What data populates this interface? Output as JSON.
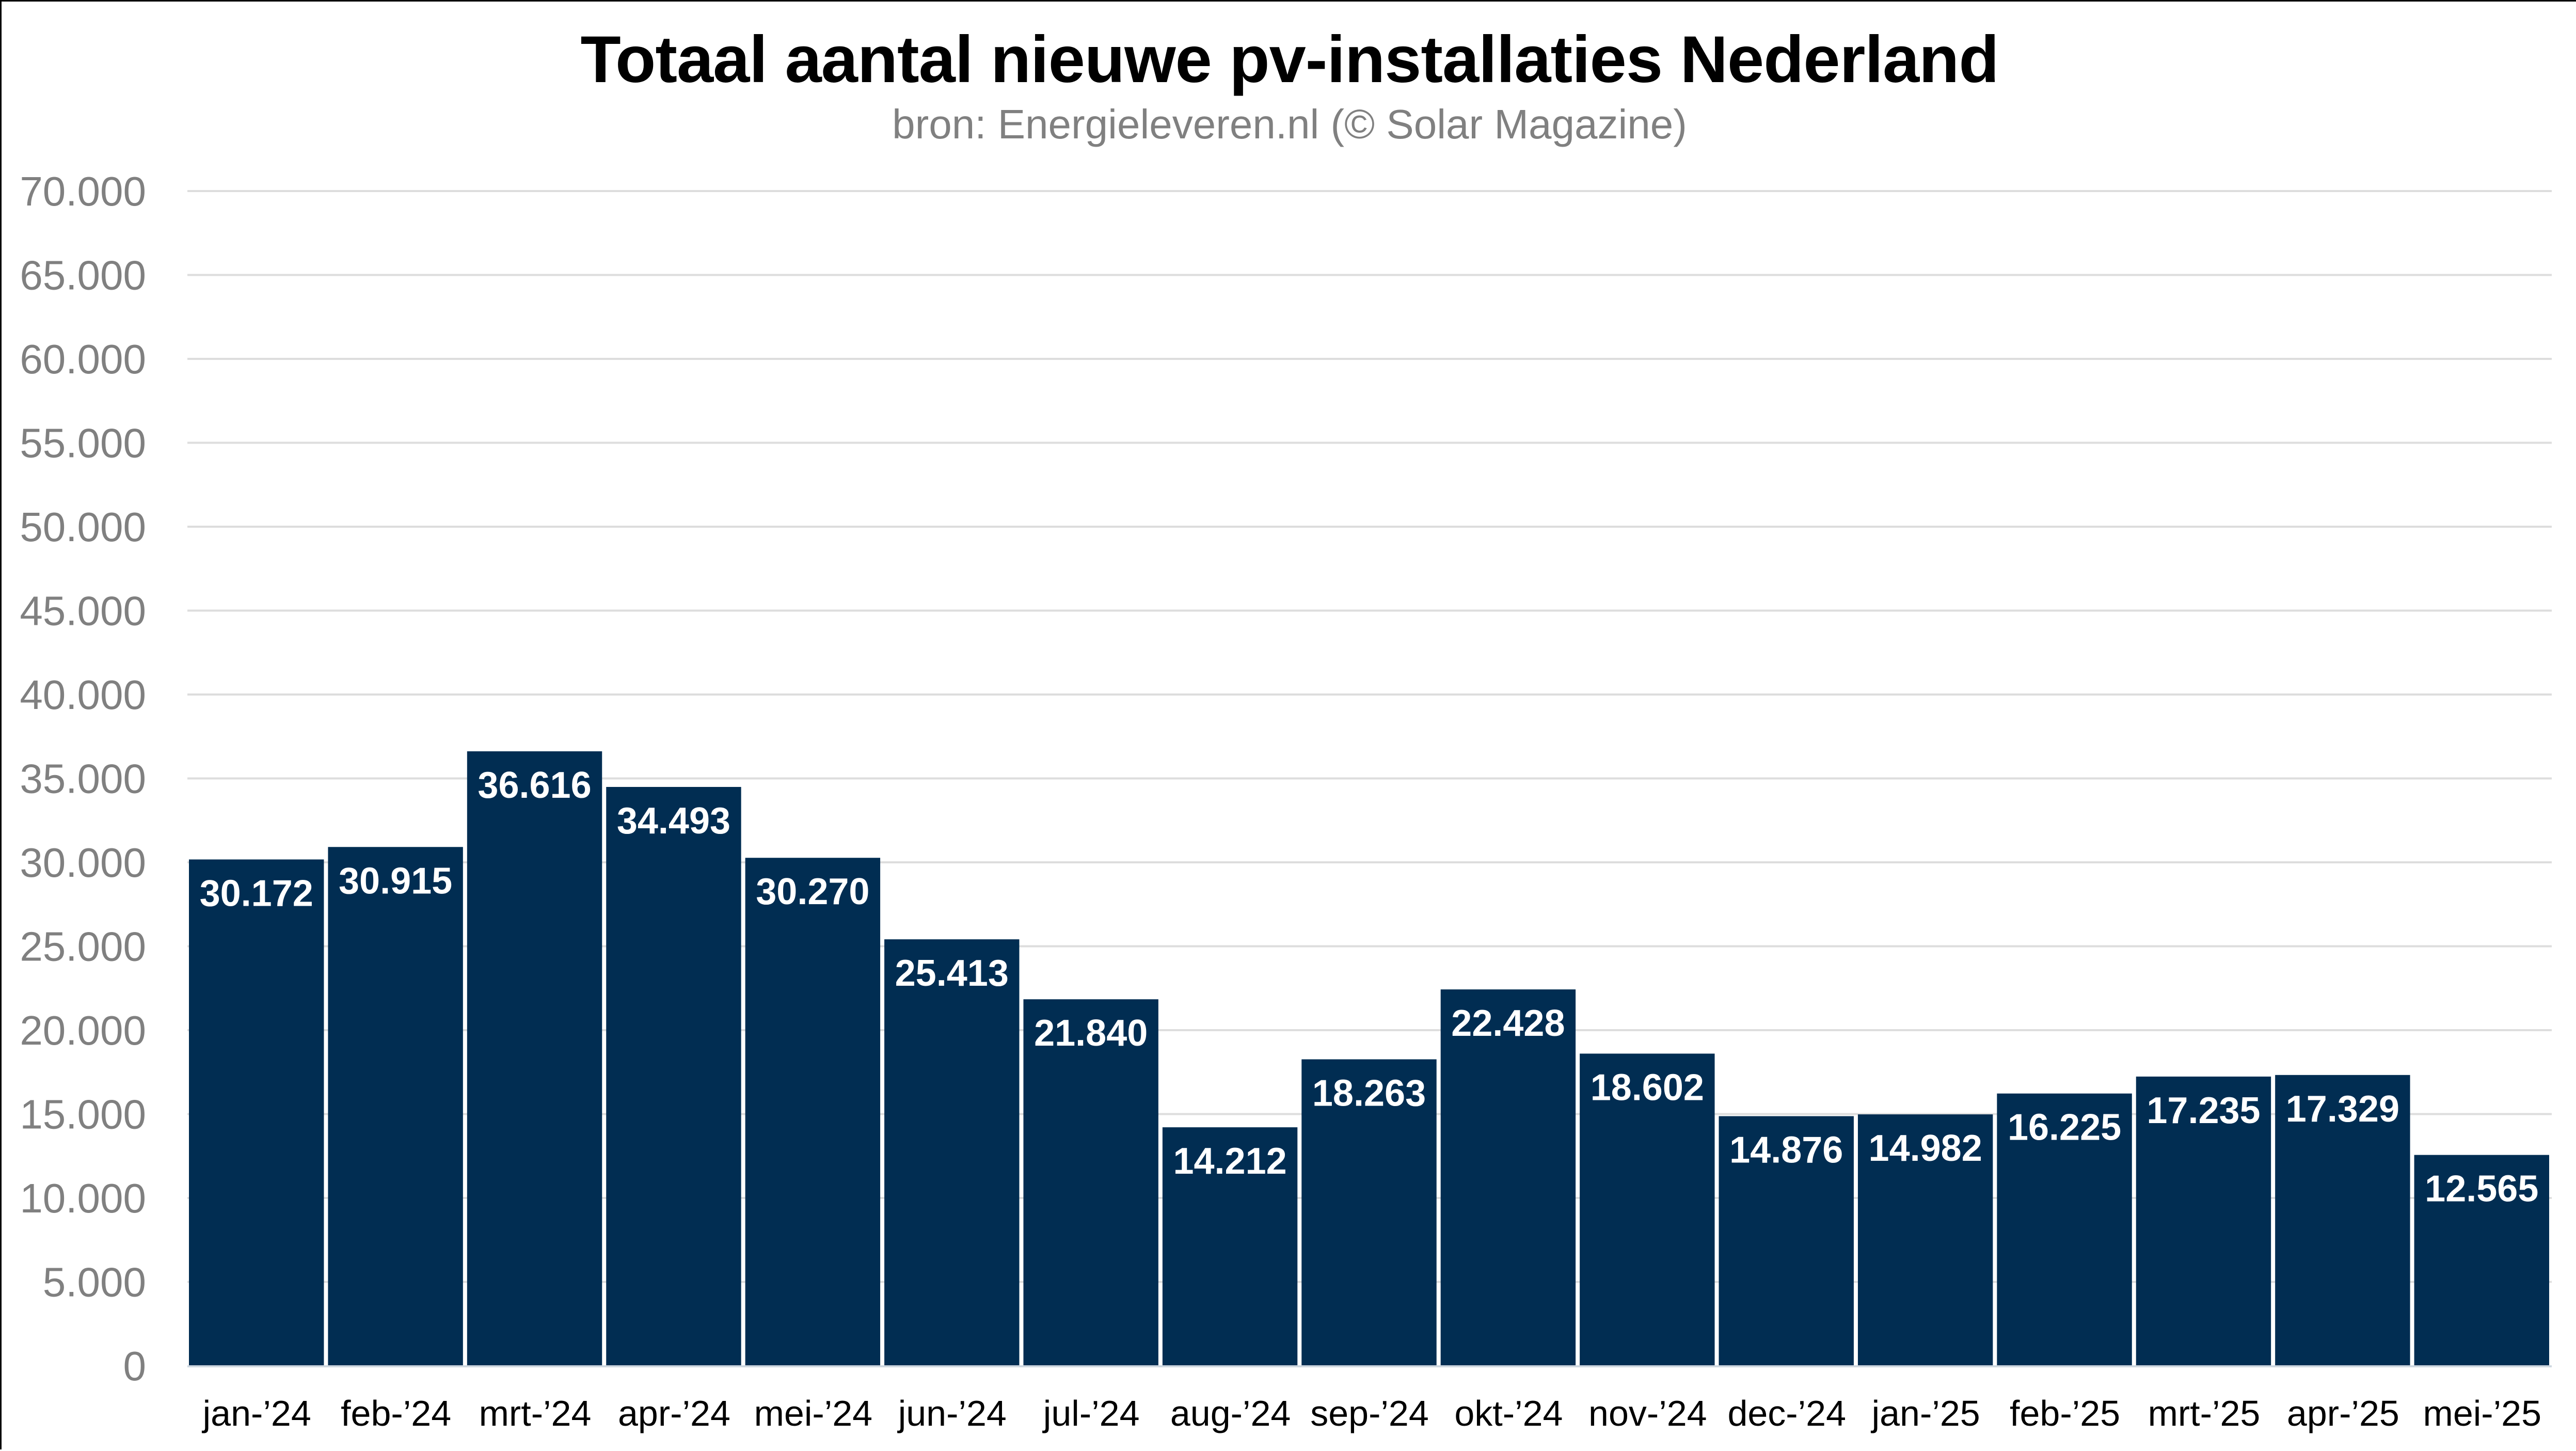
{
  "chart_data": {
    "type": "bar",
    "title": "Totaal aantal nieuwe pv-installaties Nederland",
    "subtitle": "bron: Energieleveren.nl (© Solar Magazine)",
    "xlabel": "",
    "ylabel": "",
    "categories": [
      "jan-’24",
      "feb-’24",
      "mrt-’24",
      "apr-’24",
      "mei-’24",
      "jun-’24",
      "jul-’24",
      "aug-’24",
      "sep-’24",
      "okt-’24",
      "nov-’24",
      "dec-’24",
      "jan-’25",
      "feb-’25",
      "mrt-’25",
      "apr-’25",
      "mei-’25"
    ],
    "values": [
      30172,
      30915,
      36616,
      34493,
      30270,
      25413,
      21840,
      14212,
      18263,
      22428,
      18602,
      14876,
      14982,
      16225,
      17235,
      17329,
      12565
    ],
    "data_labels": [
      "30.172",
      "30.915",
      "36.616",
      "34.493",
      "30.270",
      "25.413",
      "21.840",
      "14.212",
      "18.263",
      "22.428",
      "18.602",
      "14.876",
      "14.982",
      "16.225",
      "17.235",
      "17.329",
      "12.565"
    ],
    "ylim": [
      0,
      70000
    ],
    "yticks": [
      0,
      5000,
      10000,
      15000,
      20000,
      25000,
      30000,
      35000,
      40000,
      45000,
      50000,
      55000,
      60000,
      65000,
      70000
    ],
    "ytick_labels": [
      "0",
      "5.000",
      "10.000",
      "15.000",
      "20.000",
      "25.000",
      "30.000",
      "35.000",
      "40.000",
      "45.000",
      "50.000",
      "55.000",
      "60.000",
      "65.000",
      "70.000"
    ],
    "grid": true,
    "legend": "none",
    "colors": {
      "bar": "#012d52",
      "data_label": "#ffffff",
      "gridline": "#dddddd",
      "axis_line": "#cfd8e0",
      "tick_label_y": "#808080",
      "tick_label_x": "#000000"
    }
  }
}
